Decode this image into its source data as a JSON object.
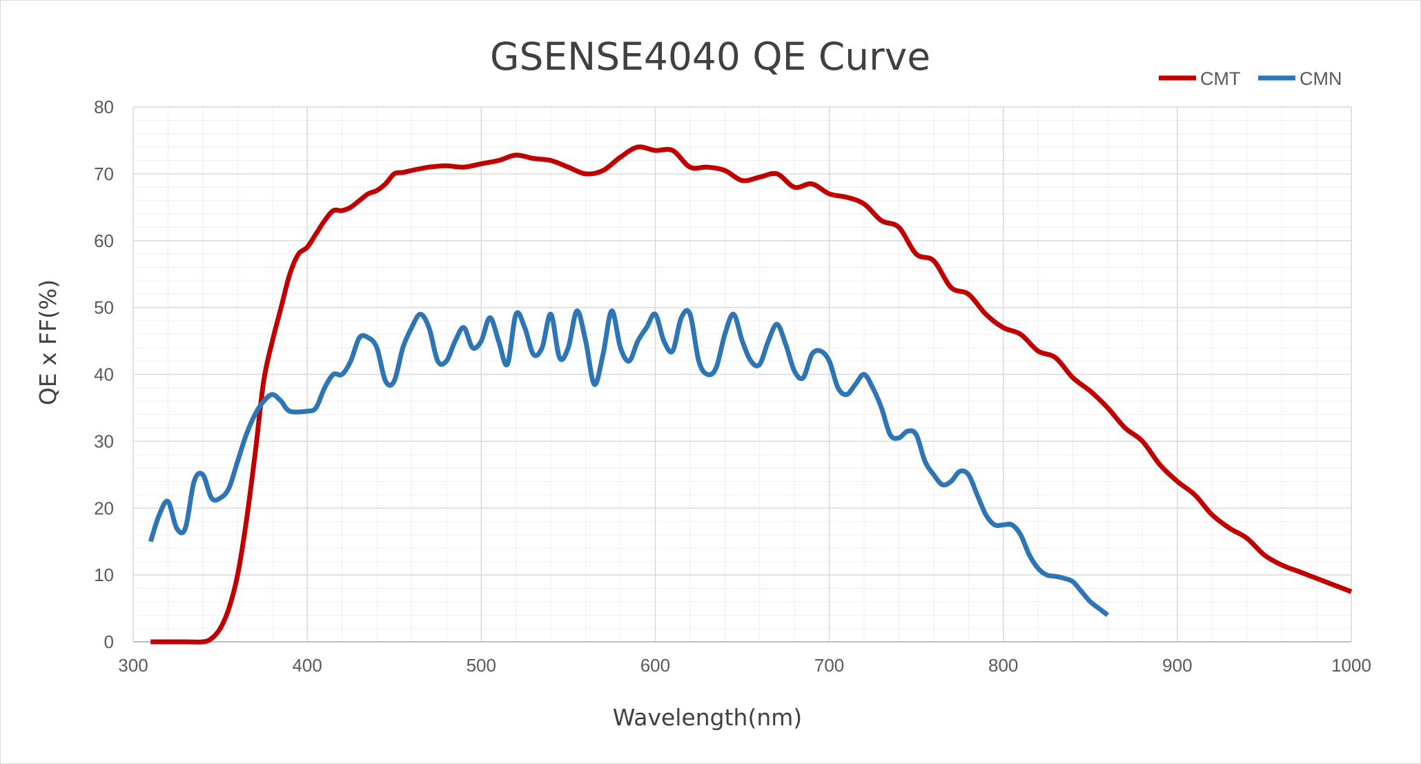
{
  "chart_data": {
    "type": "line",
    "title": "GSENSE4040 QE  Curve",
    "xlabel": "Wavelength(nm)",
    "ylabel": "QE x FF(%)",
    "xlim": [
      300,
      1000
    ],
    "ylim": [
      0,
      80
    ],
    "x_ticks": [
      "300",
      "400",
      "500",
      "600",
      "700",
      "800",
      "900",
      "1000"
    ],
    "y_ticks": [
      "0",
      "10",
      "20",
      "30",
      "40",
      "50",
      "60",
      "70",
      "80"
    ],
    "grid": true,
    "legend_position": "top-right",
    "series": [
      {
        "name": "CMT",
        "color": "#C00000",
        "points": [
          [
            310,
            0
          ],
          [
            320,
            0
          ],
          [
            330,
            0
          ],
          [
            340,
            0
          ],
          [
            345,
            0.5
          ],
          [
            350,
            2
          ],
          [
            355,
            5
          ],
          [
            360,
            10
          ],
          [
            365,
            18
          ],
          [
            370,
            28
          ],
          [
            375,
            39
          ],
          [
            380,
            45
          ],
          [
            385,
            50
          ],
          [
            390,
            55
          ],
          [
            395,
            58
          ],
          [
            400,
            59
          ],
          [
            405,
            61
          ],
          [
            410,
            63
          ],
          [
            415,
            64.5
          ],
          [
            420,
            64.5
          ],
          [
            425,
            65
          ],
          [
            430,
            66
          ],
          [
            435,
            67
          ],
          [
            440,
            67.5
          ],
          [
            445,
            68.5
          ],
          [
            450,
            70
          ],
          [
            455,
            70.2
          ],
          [
            460,
            70.5
          ],
          [
            470,
            71
          ],
          [
            480,
            71.2
          ],
          [
            490,
            71
          ],
          [
            500,
            71.5
          ],
          [
            510,
            72
          ],
          [
            520,
            72.8
          ],
          [
            530,
            72.3
          ],
          [
            540,
            72
          ],
          [
            550,
            71
          ],
          [
            560,
            70
          ],
          [
            570,
            70.5
          ],
          [
            580,
            72.5
          ],
          [
            590,
            74
          ],
          [
            600,
            73.5
          ],
          [
            610,
            73.5
          ],
          [
            620,
            71
          ],
          [
            630,
            71
          ],
          [
            640,
            70.5
          ],
          [
            650,
            69
          ],
          [
            660,
            69.5
          ],
          [
            670,
            70
          ],
          [
            680,
            68
          ],
          [
            690,
            68.5
          ],
          [
            700,
            67
          ],
          [
            710,
            66.5
          ],
          [
            720,
            65.5
          ],
          [
            730,
            63
          ],
          [
            740,
            62
          ],
          [
            750,
            58
          ],
          [
            760,
            57
          ],
          [
            770,
            53
          ],
          [
            780,
            52
          ],
          [
            790,
            49
          ],
          [
            800,
            47
          ],
          [
            810,
            46
          ],
          [
            820,
            43.5
          ],
          [
            830,
            42.5
          ],
          [
            840,
            39.5
          ],
          [
            850,
            37.5
          ],
          [
            860,
            35
          ],
          [
            870,
            32
          ],
          [
            880,
            30
          ],
          [
            890,
            26.5
          ],
          [
            900,
            24
          ],
          [
            910,
            22
          ],
          [
            920,
            19
          ],
          [
            930,
            17
          ],
          [
            940,
            15.5
          ],
          [
            950,
            13
          ],
          [
            960,
            11.5
          ],
          [
            970,
            10.5
          ],
          [
            980,
            9.5
          ],
          [
            990,
            8.5
          ],
          [
            1000,
            7.5
          ]
        ]
      },
      {
        "name": "CMN",
        "color": "#2E75B6",
        "points": [
          [
            310,
            15
          ],
          [
            315,
            19
          ],
          [
            320,
            21
          ],
          [
            325,
            17
          ],
          [
            330,
            17
          ],
          [
            335,
            24
          ],
          [
            340,
            25
          ],
          [
            345,
            21.5
          ],
          [
            350,
            21.5
          ],
          [
            355,
            23
          ],
          [
            360,
            27
          ],
          [
            365,
            31
          ],
          [
            370,
            34
          ],
          [
            375,
            36
          ],
          [
            380,
            37
          ],
          [
            385,
            36
          ],
          [
            390,
            34.5
          ],
          [
            400,
            34.5
          ],
          [
            405,
            35
          ],
          [
            410,
            38
          ],
          [
            415,
            40
          ],
          [
            420,
            40
          ],
          [
            425,
            42
          ],
          [
            430,
            45.5
          ],
          [
            435,
            45.5
          ],
          [
            440,
            44
          ],
          [
            445,
            39
          ],
          [
            450,
            39
          ],
          [
            455,
            44
          ],
          [
            460,
            47
          ],
          [
            465,
            49
          ],
          [
            470,
            47
          ],
          [
            475,
            42
          ],
          [
            480,
            42
          ],
          [
            485,
            45
          ],
          [
            490,
            47
          ],
          [
            495,
            44
          ],
          [
            500,
            45
          ],
          [
            505,
            48.5
          ],
          [
            510,
            45
          ],
          [
            515,
            41.5
          ],
          [
            520,
            49
          ],
          [
            525,
            47
          ],
          [
            530,
            43
          ],
          [
            535,
            44
          ],
          [
            540,
            49
          ],
          [
            545,
            42.5
          ],
          [
            550,
            44
          ],
          [
            555,
            49.5
          ],
          [
            560,
            45
          ],
          [
            565,
            38.5
          ],
          [
            570,
            43
          ],
          [
            575,
            49.5
          ],
          [
            580,
            44
          ],
          [
            585,
            42
          ],
          [
            590,
            45
          ],
          [
            595,
            47
          ],
          [
            600,
            49
          ],
          [
            605,
            45
          ],
          [
            610,
            43.5
          ],
          [
            615,
            48.5
          ],
          [
            620,
            49
          ],
          [
            625,
            42
          ],
          [
            630,
            40
          ],
          [
            635,
            41
          ],
          [
            640,
            46
          ],
          [
            645,
            49
          ],
          [
            650,
            45
          ],
          [
            655,
            42
          ],
          [
            660,
            41.5
          ],
          [
            665,
            45
          ],
          [
            670,
            47.5
          ],
          [
            675,
            44.5
          ],
          [
            680,
            40.5
          ],
          [
            685,
            39.5
          ],
          [
            690,
            43
          ],
          [
            695,
            43.5
          ],
          [
            700,
            42
          ],
          [
            705,
            38
          ],
          [
            710,
            37
          ],
          [
            715,
            38.5
          ],
          [
            720,
            40
          ],
          [
            725,
            38
          ],
          [
            730,
            35
          ],
          [
            735,
            31
          ],
          [
            740,
            30.5
          ],
          [
            745,
            31.5
          ],
          [
            750,
            31
          ],
          [
            755,
            27
          ],
          [
            760,
            25
          ],
          [
            765,
            23.5
          ],
          [
            770,
            24
          ],
          [
            775,
            25.5
          ],
          [
            780,
            25
          ],
          [
            785,
            22
          ],
          [
            790,
            19
          ],
          [
            795,
            17.5
          ],
          [
            800,
            17.5
          ],
          [
            805,
            17.5
          ],
          [
            810,
            16
          ],
          [
            815,
            13
          ],
          [
            820,
            11
          ],
          [
            825,
            10
          ],
          [
            830,
            9.8
          ],
          [
            835,
            9.5
          ],
          [
            840,
            9
          ],
          [
            845,
            7.5
          ],
          [
            850,
            6
          ],
          [
            855,
            5
          ],
          [
            860,
            4
          ]
        ]
      }
    ]
  }
}
